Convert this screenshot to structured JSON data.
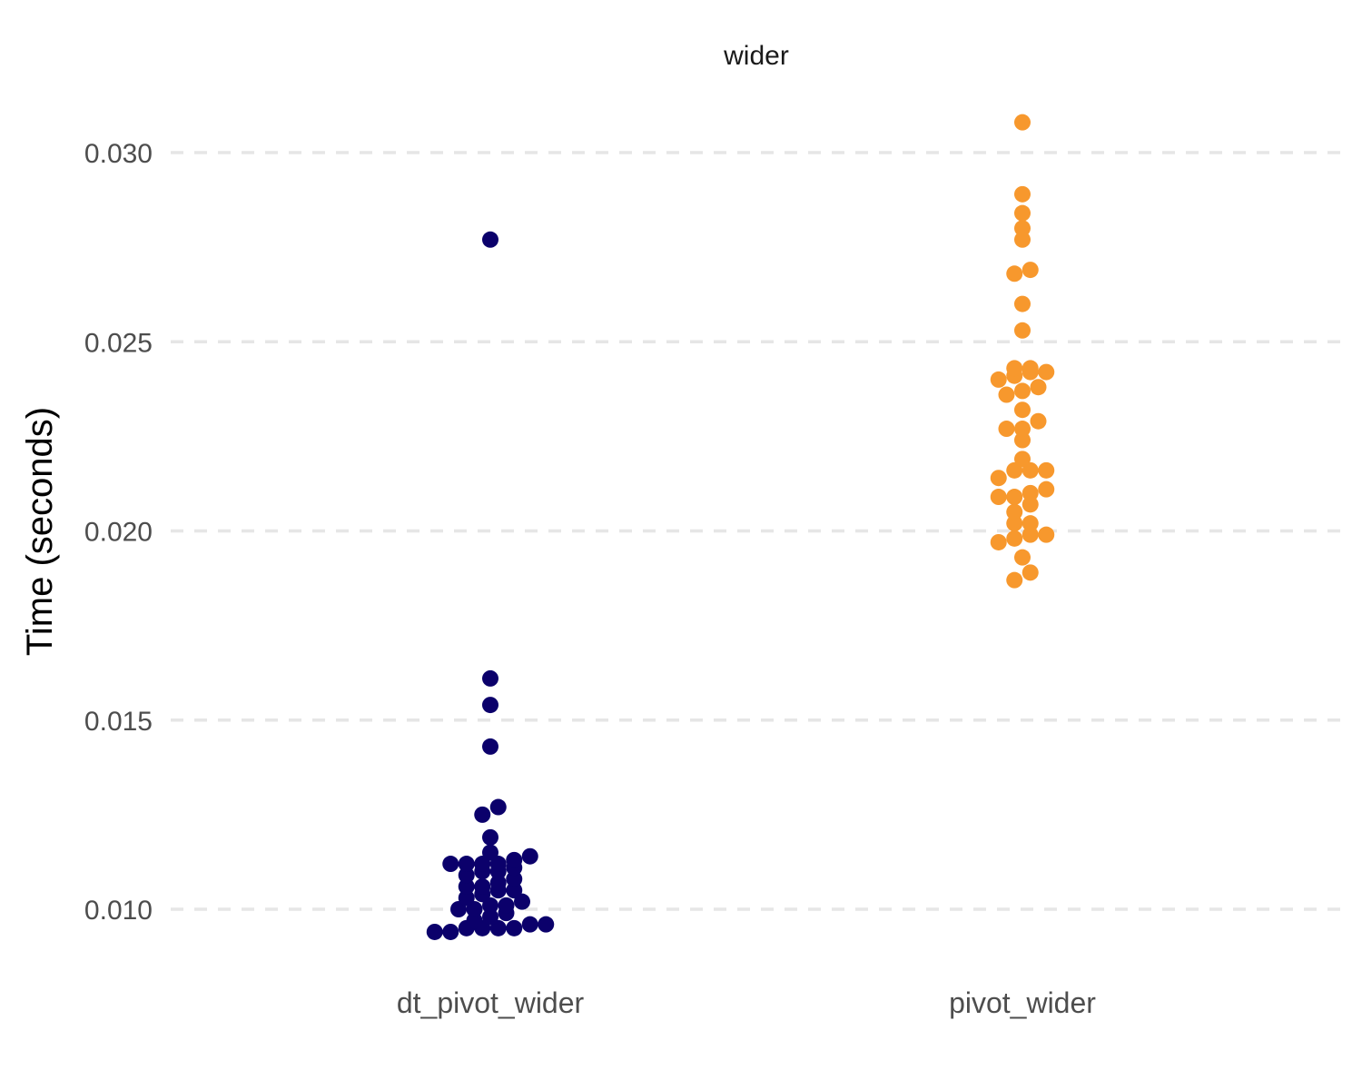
{
  "chart_data": {
    "type": "scatter",
    "facet_title": "wider",
    "xlabel": "",
    "ylabel": "Time (seconds)",
    "ylim": [
      0.0088,
      0.0312
    ],
    "yticks": [
      0.01,
      0.015,
      0.02,
      0.025,
      0.03
    ],
    "ytick_labels": [
      "0.010",
      "0.015",
      "0.020",
      "0.025",
      "0.030"
    ],
    "grid": true,
    "legend": "none",
    "categories": [
      "dt_pivot_wider",
      "pivot_wider"
    ],
    "series": [
      {
        "category": "dt_pivot_wider",
        "color": "#0b006b",
        "values": [
          0.0277,
          0.0161,
          0.0154,
          0.0143,
          0.0127,
          0.0125,
          0.0119,
          0.0115,
          0.0114,
          0.0113,
          0.0112,
          0.0112,
          0.0112,
          0.0112,
          0.0111,
          0.011,
          0.011,
          0.0109,
          0.0108,
          0.0107,
          0.0106,
          0.0106,
          0.0105,
          0.0105,
          0.0104,
          0.0103,
          0.0102,
          0.0101,
          0.0101,
          0.01,
          0.01,
          0.0099,
          0.0098,
          0.0097,
          0.0096,
          0.0096,
          0.0095,
          0.0095,
          0.0095,
          0.0095,
          0.0094,
          0.0094
        ]
      },
      {
        "category": "pivot_wider",
        "color": "#f7982d",
        "values": [
          0.0308,
          0.0289,
          0.0284,
          0.028,
          0.0277,
          0.0269,
          0.0268,
          0.026,
          0.0253,
          0.0243,
          0.0243,
          0.0242,
          0.0242,
          0.0241,
          0.024,
          0.0238,
          0.0237,
          0.0236,
          0.0232,
          0.0229,
          0.0227,
          0.0227,
          0.0224,
          0.0219,
          0.0216,
          0.0216,
          0.0216,
          0.0214,
          0.0211,
          0.021,
          0.0209,
          0.0209,
          0.0207,
          0.0205,
          0.0202,
          0.0202,
          0.0199,
          0.0199,
          0.0198,
          0.0197,
          0.0193,
          0.0189,
          0.0187
        ]
      }
    ]
  }
}
